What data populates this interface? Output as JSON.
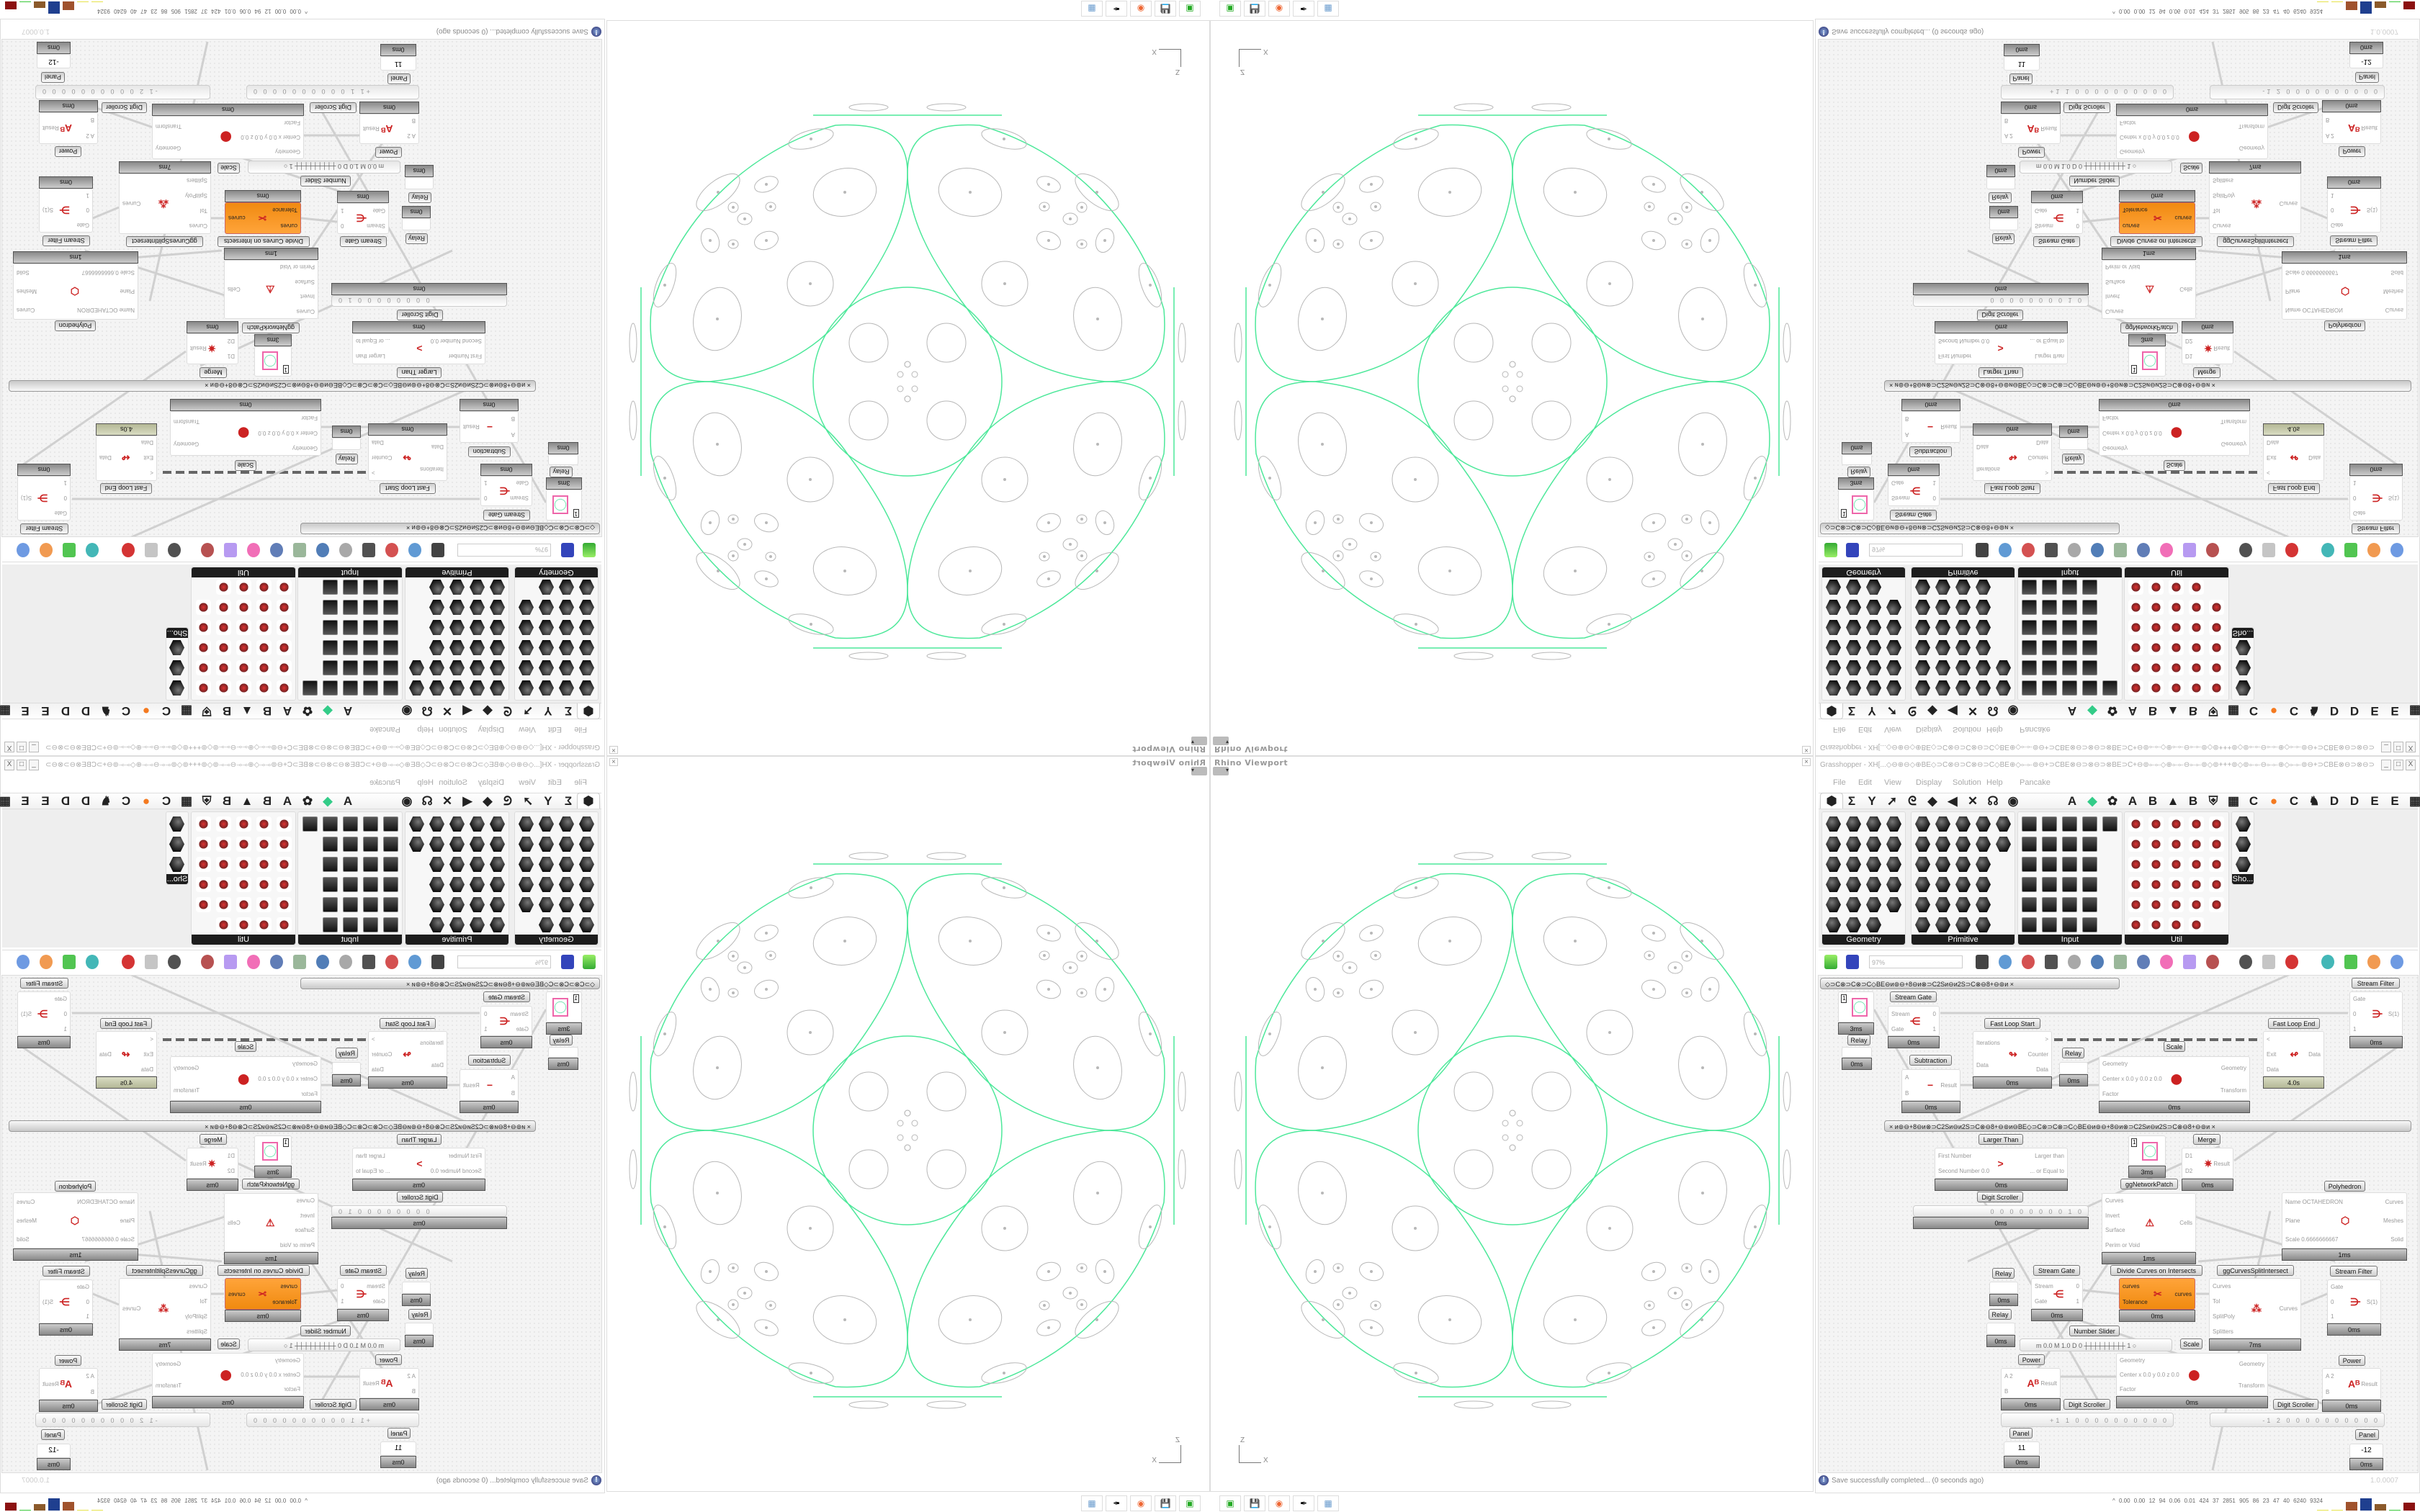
{
  "viewport": {
    "title": "Rhino Viewport",
    "close": "×",
    "axis_z": "Z",
    "axis_x": "X",
    "curve_color": "#4de89a",
    "detail_color": "#b8b8b8"
  },
  "gh": {
    "title": "Grasshopper - XH[...◇⊖⊕⊖◇⊕BE◇⊃C⊗⊖⊃C⊗⊖⊃C◇BE⊕◇⟜⟜⊚⊖+⊃CBE⊗⊖⊃⊗⊖⊃⊗BE⊃C+⊖⊚⟜⟜◇⊕⟜⟜⊖⟜⟜⊚◇⊚+++⊚◇⊚⟜⟜⊖⟜⟜⊕◇⟜⟜⊚⊖+⊃CBE⊗⊖⊃⊗⊖⊃...",
    "window_buttons": {
      "minimize": "_",
      "maximize": "□",
      "close": "X"
    },
    "menu": [
      "File",
      "Edit",
      "View",
      "Display",
      "Solution",
      "Help",
      "Pancake"
    ],
    "tabs": [
      {
        "name": "params-tab-icon",
        "glyph": "⬢"
      },
      {
        "name": "maths-tab-icon",
        "glyph": "Σ"
      },
      {
        "name": "sets-tab-icon",
        "glyph": "Y"
      },
      {
        "name": "vector-tab-icon",
        "glyph": "➚"
      },
      {
        "name": "curve-tab-icon",
        "glyph": "ᘓ"
      },
      {
        "name": "surface-tab-icon",
        "glyph": "◆"
      },
      {
        "name": "mesh-tab-icon",
        "glyph": "◀"
      },
      {
        "name": "intersect-tab-icon",
        "glyph": "✕"
      },
      {
        "name": "transform-tab-icon",
        "glyph": "☊"
      },
      {
        "name": "display-tab-icon",
        "glyph": "◉"
      },
      {
        "name": "plugin-a-tab-icon",
        "glyph": "A"
      },
      {
        "name": "crystal-tab-icon",
        "glyph": "◆"
      },
      {
        "name": "puzzle-tab-icon",
        "glyph": "✿"
      },
      {
        "name": "plugin-a2-tab-icon",
        "glyph": "A"
      },
      {
        "name": "plugin-b-tab-icon",
        "glyph": "B"
      },
      {
        "name": "mountain-tab-icon",
        "glyph": "▲"
      },
      {
        "name": "plugin-b2-tab-icon",
        "glyph": "B"
      },
      {
        "name": "shield-tab-icon",
        "glyph": "⛨"
      },
      {
        "name": "grid-tab-icon",
        "glyph": "▦"
      },
      {
        "name": "plugin-c-tab-icon",
        "glyph": "C"
      },
      {
        "name": "orange-ball-tab-icon",
        "glyph": "●"
      },
      {
        "name": "plugin-c2-tab-icon",
        "glyph": "C"
      },
      {
        "name": "rooster-tab-icon",
        "glyph": "♞"
      },
      {
        "name": "plugin-d-tab-icon",
        "glyph": "D"
      },
      {
        "name": "plugin-d2-tab-icon",
        "glyph": "D"
      },
      {
        "name": "plugin-e-tab-icon",
        "glyph": "E"
      },
      {
        "name": "plugin-e2-tab-icon",
        "glyph": "E"
      },
      {
        "name": "more-tabs-icon",
        "glyph": "▦"
      }
    ],
    "panels": [
      {
        "label": "Geometry",
        "expand": "+"
      },
      {
        "label": "Primitive",
        "expand": "+"
      },
      {
        "label": "Input",
        "expand": "+"
      },
      {
        "label": "Util",
        "expand": "+"
      },
      {
        "label": "Sho..."
      }
    ],
    "toolbar": {
      "zoom": "97%"
    },
    "canvas": {
      "groups": [
        "◇⊃C⊗⊃C⊗⊃C◇BE⊖ᴎ⊚⊖+8⊖ᴎ⊗⊃C2Sᴎ⊖ᴎ2S⊃C⊗⊖8+⊖⊚ᴎ   ×",
        "×   ᴎ⊚⊖+8⊖ᴎ⊗⊃C2Sᴎ⊖ᴎ2S⊃C⊗⊖8+⊖⊚ᴎ⊖BE◇⊃C⊗⊃C⊗⊃C◇BE⊖ᴎ⊚⊖+8⊖ᴎ⊗⊃C2Sᴎ⊖ᴎ2S⊃C⊗⊖8+⊖⊚ᴎ   ×"
      ],
      "nodes": [
        {
          "kind": "param",
          "value": "1",
          "time": "3ms"
        },
        {
          "label": "Relay",
          "kind": "relay",
          "time": "0ms"
        },
        {
          "label": "Stream Gate",
          "inputs": [
            "Stream",
            "Gate"
          ],
          "outputs": [
            "0",
            "1"
          ],
          "icon": "stream-gate-icon",
          "glyph": "⋲",
          "time": "0ms"
        },
        {
          "label": "Fast Loop Start",
          "inputs": [
            "Iterations",
            "Data"
          ],
          "outputs": [
            ">",
            "Counter",
            "Data"
          ],
          "icon": "loop-start-icon",
          "glyph": "↬",
          "time": "0ms"
        },
        {
          "label": "Fast Loop End",
          "inputs": [
            "<",
            "Exit",
            "Data"
          ],
          "outputs": [
            "Data"
          ],
          "icon": "loop-end-icon",
          "glyph": "↫",
          "time": "4.0s",
          "time_color": "#c8cbab"
        },
        {
          "label": "Stream Filter",
          "inputs": [
            "Gate",
            "0",
            "1"
          ],
          "outputs": [
            "S(1)"
          ],
          "icon": "stream-filter-icon",
          "glyph": "⋺",
          "time": "0ms"
        },
        {
          "label": "Subtraction",
          "inputs": [
            "A",
            "B"
          ],
          "outputs": [
            "Result"
          ],
          "icon": "minus-icon",
          "glyph": "−",
          "time": "0ms",
          "value": "1"
        },
        {
          "label": "Relay",
          "kind": "relay",
          "time": "0ms"
        },
        {
          "label": "Scale",
          "inputs": [
            "Geometry",
            "Center x 0.0 y 0.0 z 0.0",
            "Factor"
          ],
          "outputs": [
            "Geometry",
            "Transform"
          ],
          "icon": "scale-icon",
          "glyph": "⬤",
          "time": "0ms"
        },
        {
          "label": "Larger Than",
          "inputs": [
            "First Number",
            "Second Number 0.0"
          ],
          "outputs": [
            "Larger than",
            "... or Equal to"
          ],
          "icon": "greater-than-icon",
          "glyph": ">",
          "time": "0ms"
        },
        {
          "label": "ggNetworkPatch",
          "kind": "param",
          "value": "1",
          "time": "3ms",
          "label_below": true
        },
        {
          "label": "Merge",
          "inputs": [
            "D1",
            "D2"
          ],
          "outputs": [
            "Result"
          ],
          "icon": "merge-icon",
          "glyph": "✷",
          "time": "0ms"
        },
        {
          "label": "Digit Scroller",
          "kind": "scroller",
          "value": "0 0 0 0 0 0 0 0 1 0",
          "time": "0ms"
        },
        {
          "inputs": [
            "Curves",
            "Invert",
            "Surface",
            "Perim or Void"
          ],
          "outputs": [
            "Cells"
          ],
          "icon": "cells-icon",
          "glyph": "⚠",
          "time": "1ms"
        },
        {
          "label": "Polyhedron",
          "inputs": [
            "Name OCTAHEDRON",
            "Plane",
            "Scale 0.6666666667"
          ],
          "outputs": [
            "Curves",
            "Meshes",
            "Solid"
          ],
          "icon": "polyhedron-icon",
          "glyph": "⬡",
          "time": "1ms"
        },
        {
          "label": "Relay",
          "kind": "relay",
          "time": "0ms"
        },
        {
          "label": "Relay",
          "kind": "relay",
          "time": "0ms"
        },
        {
          "label": "Stream Gate",
          "inputs": [
            "Stream",
            "Gate"
          ],
          "outputs": [
            "0",
            "1"
          ],
          "icon": "stream-gate-icon",
          "glyph": "⋲",
          "time": "0ms"
        },
        {
          "label": "Divide Curves on Intersects",
          "inputs": [
            "curves",
            "Tolerance"
          ],
          "outputs": [
            "curves"
          ],
          "icon": "divide-curves-icon",
          "glyph": "✂",
          "time": "0ms",
          "selected_color": "#f7941d"
        },
        {
          "label": "ggCurvesSplitIntersect",
          "inputs": [
            "Curves",
            "Tol",
            "SplitPoly",
            "Splitters"
          ],
          "outputs": [
            "Curves"
          ],
          "icon": "split-intersect-icon",
          "glyph": "⁂",
          "time": "7ms"
        },
        {
          "label": "Stream Filter",
          "inputs": [
            "Gate",
            "0",
            "1"
          ],
          "outputs": [
            "S(1)"
          ],
          "icon": "stream-filter-icon",
          "glyph": "⋺",
          "time": "0ms"
        },
        {
          "label": "Number Slider",
          "kind": "slider",
          "value": "m 0.0  M 1.0  D 0   ┼┼┼┼┼┼┼┼┼ 1 ○"
        },
        {
          "label": "Scale",
          "inputs": [
            "Geometry",
            "Center x 0.0 y 0.0 z 0.0",
            "Factor"
          ],
          "outputs": [
            "Geometry",
            "Transform"
          ],
          "icon": "scale-icon",
          "glyph": "⬤",
          "time": "0ms"
        },
        {
          "label": "Power",
          "inputs": [
            "A 2",
            "B"
          ],
          "outputs": [
            "Result"
          ],
          "icon": "power-icon",
          "glyph": "Aᴮ",
          "time": "0ms"
        },
        {
          "label": "Digit Scroller",
          "kind": "scroller",
          "value": "+1 1 0 0 0 0 0 0 0 0 0 0"
        },
        {
          "label": "Power",
          "inputs": [
            "A 2",
            "B"
          ],
          "outputs": [
            "Result"
          ],
          "icon": "power-icon",
          "glyph": "Aᴮ",
          "time": "0ms"
        },
        {
          "label": "Digit Scroller",
          "kind": "scroller",
          "value": "-1 2 0 0 0 0 0 0 0 0 0 0"
        },
        {
          "label": "Panel",
          "kind": "panel",
          "value": "11",
          "time": "0ms"
        },
        {
          "label": "Panel",
          "kind": "panel",
          "value": "-12",
          "time": "0ms"
        }
      ]
    },
    "status": {
      "message": "Save successfully completed... (0 seconds ago)",
      "version": "1.0.0007"
    }
  },
  "taskbar": {
    "apps": [
      "terminal-icon",
      "floppy-64-icon",
      "firefox-icon",
      "inkscape-icon",
      "calculator-icon"
    ],
    "stats": "^  0.00 0.00 12 94 0.06 0.01 424 37 2851 905 86 23 47 40 6240 9324",
    "stat_bar_colors": [
      "#e6e24a",
      "#e6e24a",
      "#a0522d",
      "#1f3f8f",
      "#8b5a2b",
      "#37c837",
      "#8b1010"
    ]
  }
}
